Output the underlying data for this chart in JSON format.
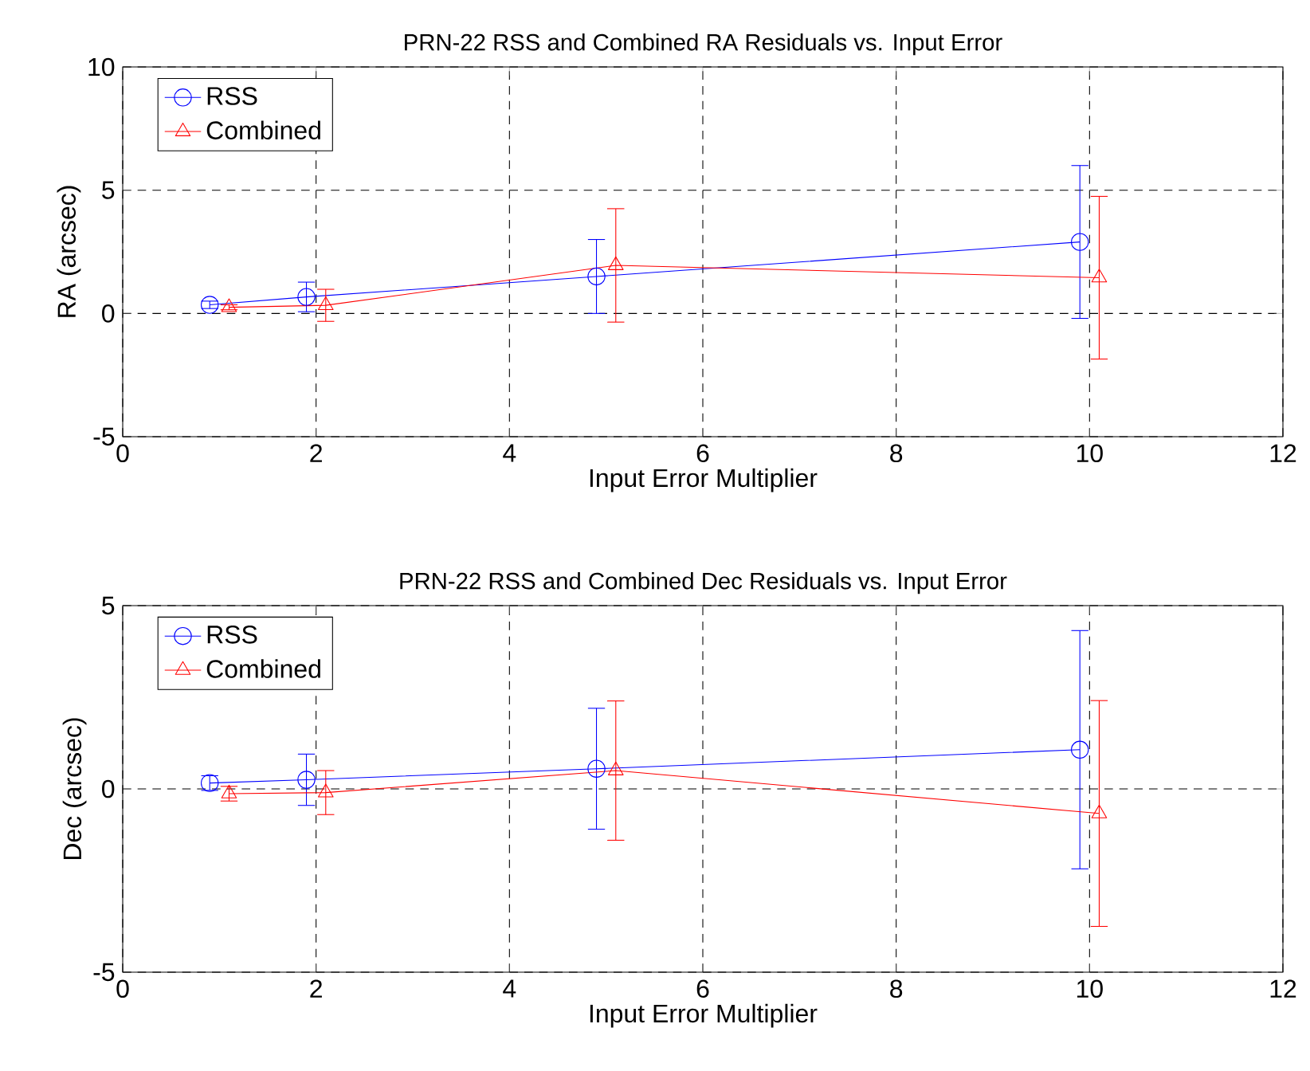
{
  "chart_data": [
    {
      "type": "line",
      "title": "PRN-22 RSS and Combined RA Residuals vs. Input Error",
      "xlabel": "Input Error Multiplier",
      "ylabel": "RA (arcsec)",
      "xlim": [
        0,
        12
      ],
      "ylim": [
        -5,
        10
      ],
      "xticks": [
        0,
        2,
        4,
        6,
        8,
        10,
        12
      ],
      "yticks": [
        -5,
        0,
        5,
        10
      ],
      "grid": true,
      "legend": "top left",
      "series": [
        {
          "name": "RSS",
          "color": "#0000ff",
          "marker": "circle",
          "x": [
            0.9,
            1.9,
            4.9,
            9.9
          ],
          "values": [
            0.35,
            0.67,
            1.5,
            2.9
          ],
          "errors": [
            0.15,
            0.6,
            1.5,
            3.1
          ]
        },
        {
          "name": "Combined",
          "color": "#ff0000",
          "marker": "triangle",
          "x": [
            1.1,
            2.1,
            5.1,
            10.1
          ],
          "values": [
            0.25,
            0.33,
            1.95,
            1.45
          ],
          "errors": [
            0.1,
            0.65,
            2.3,
            3.3
          ]
        }
      ]
    },
    {
      "type": "line",
      "title": "PRN-22 RSS and Combined Dec Residuals vs. Input Error",
      "xlabel": "Input Error Multiplier",
      "ylabel": "Dec (arcsec)",
      "xlim": [
        0,
        12
      ],
      "ylim": [
        -5,
        5
      ],
      "xticks": [
        0,
        2,
        4,
        6,
        8,
        10,
        12
      ],
      "yticks": [
        -5,
        0,
        5
      ],
      "grid": true,
      "legend": "top left",
      "series": [
        {
          "name": "RSS",
          "color": "#0000ff",
          "marker": "circle",
          "x": [
            0.9,
            1.9,
            4.9,
            9.9
          ],
          "values": [
            0.16,
            0.25,
            0.55,
            1.07
          ],
          "errors": [
            0.2,
            0.7,
            1.65,
            3.25
          ]
        },
        {
          "name": "Combined",
          "color": "#ff0000",
          "marker": "triangle",
          "x": [
            1.1,
            2.1,
            5.1,
            10.1
          ],
          "values": [
            -0.13,
            -0.1,
            0.5,
            -0.67
          ],
          "errors": [
            0.2,
            0.6,
            1.9,
            3.08
          ]
        }
      ]
    }
  ]
}
